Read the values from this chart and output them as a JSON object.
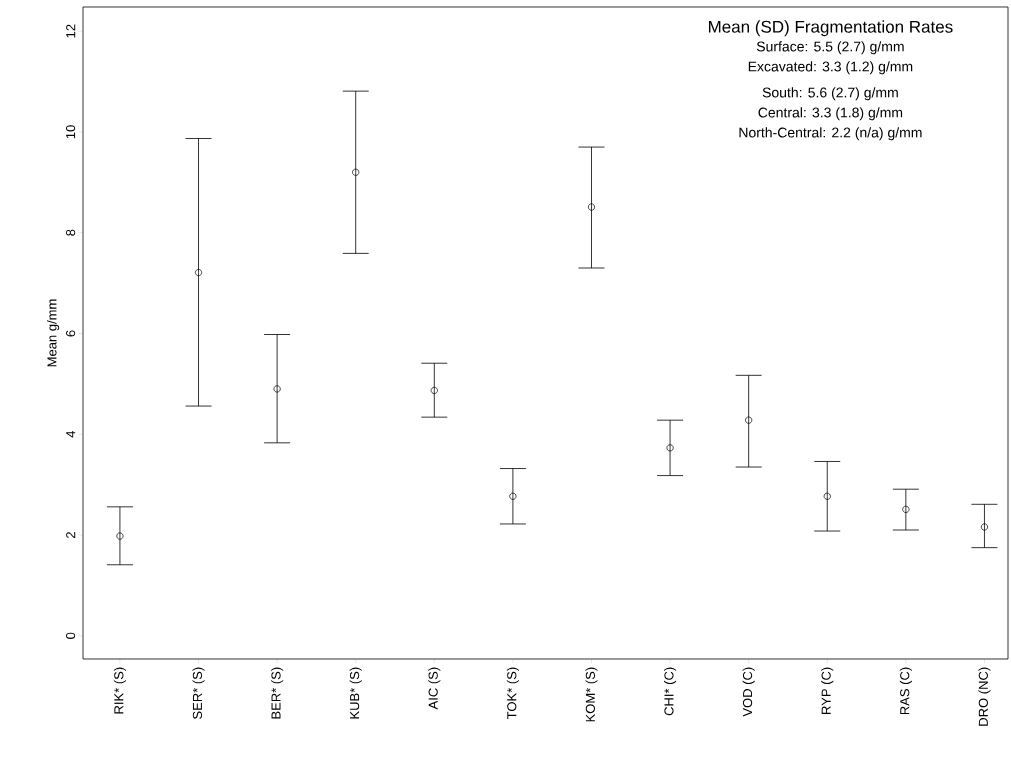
{
  "chart_data": {
    "type": "scatter",
    "title": "Mean (SD) Fragmentation Rates",
    "annotations": [
      "Surface: 5.5 (2.7)  g/mm",
      "Excavated: 3.3 (1.2) g/mm",
      "South: 5.6 (2.7) g/mm",
      "Central: 3.3 (1.8) g/mm",
      "North-Central: 2.2 (n/a) g/mm"
    ],
    "ylabel": "Mean g/mm",
    "categories": [
      "RIK* (S)",
      "SER* (S)",
      "BER* (S)",
      "KUB* (S)",
      "AIC (S)",
      "TOK* (S)",
      "KOM* (S)",
      "CHI* (C)",
      "VOD (C)",
      "RYP (C)",
      "RAS (C)",
      "DRO (NC)"
    ],
    "series": [
      {
        "color": "#000000",
        "values": [
          1.98,
          7.21,
          4.9,
          9.2,
          4.87,
          2.77,
          8.51,
          3.73,
          4.28,
          2.77,
          2.51,
          2.16
        ],
        "errors": [
          [
            1.41,
            2.56
          ],
          [
            4.56,
            9.87
          ],
          [
            3.83,
            5.98
          ],
          [
            7.59,
            10.81
          ],
          [
            4.34,
            5.41
          ],
          [
            2.22,
            3.32
          ],
          [
            7.3,
            9.7
          ],
          [
            3.18,
            4.28
          ],
          [
            3.35,
            5.17
          ],
          [
            2.08,
            3.46
          ],
          [
            2.1,
            2.91
          ],
          [
            1.75,
            2.61
          ]
        ]
      }
    ],
    "marker": "circle",
    "grid": false,
    "ylim": [
      -0.46,
      12.48
    ],
    "yticks": [
      0,
      2,
      4,
      6,
      8,
      10,
      12
    ]
  }
}
